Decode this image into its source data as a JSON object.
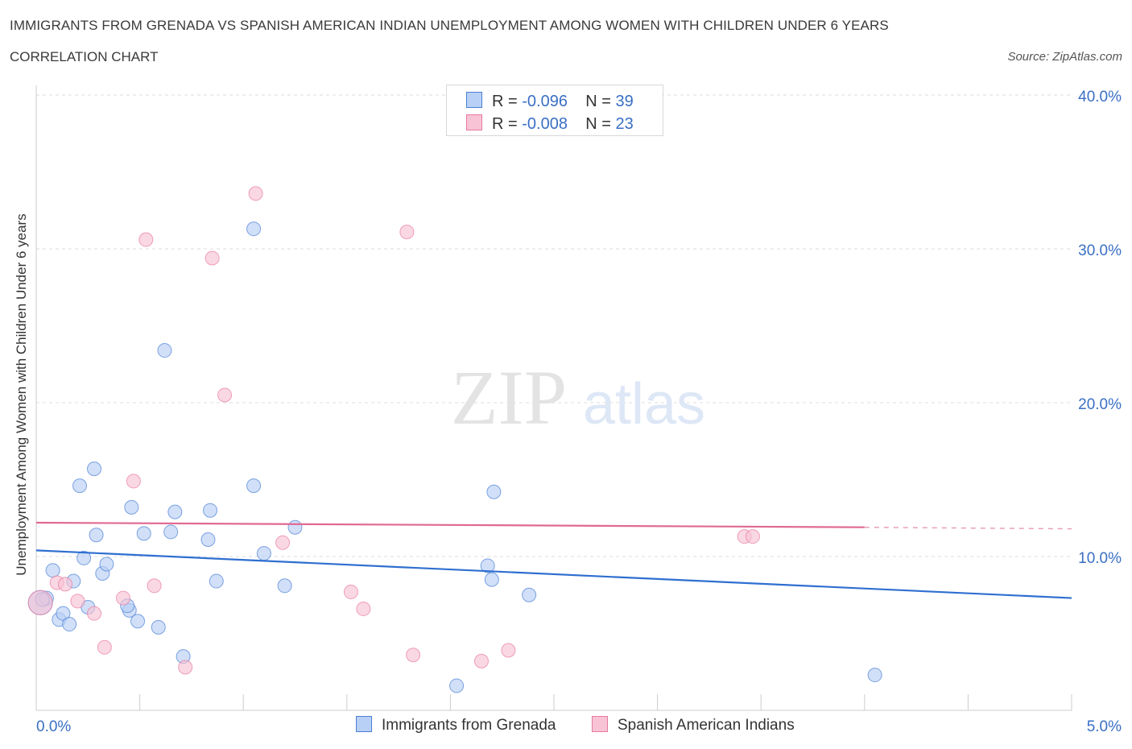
{
  "title": "IMMIGRANTS FROM GRENADA VS SPANISH AMERICAN INDIAN UNEMPLOYMENT AMONG WOMEN WITH CHILDREN UNDER 6 YEARS",
  "subtitle": "CORRELATION CHART",
  "source": "Source: ZipAtlas.com",
  "watermark": {
    "zip": "ZIP",
    "atlas": "atlas"
  },
  "legend": [
    {
      "r_label": "R =",
      "r_value": "-0.096",
      "n_label": "N =",
      "n_value": "39"
    },
    {
      "r_label": "R =",
      "r_value": "-0.008",
      "n_label": "N =",
      "n_value": "23"
    }
  ],
  "chart_data": {
    "type": "scatter",
    "title": "IMMIGRANTS FROM GRENADA VS SPANISH AMERICAN INDIAN UNEMPLOYMENT AMONG WOMEN WITH CHILDREN UNDER 6 YEARS",
    "xlabel": "",
    "ylabel": "Unemployment Among Women with Children Under 6 years",
    "xlim": [
      0,
      5
    ],
    "ylim": [
      0,
      40
    ],
    "x_tick_labels": [
      "0.0%",
      "5.0%"
    ],
    "y_ticks": [
      10,
      20,
      30,
      40
    ],
    "y_tick_labels": [
      "10.0%",
      "20.0%",
      "30.0%",
      "40.0%"
    ],
    "grid": true,
    "colors": {
      "blue": "#4a7fd6",
      "pink": "#e87aa0",
      "blue_fill": "#b8d0f5",
      "pink_fill": "#f8c3d4",
      "axis_text": "#3a6fc4"
    },
    "series": [
      {
        "name": "Immigrants from Grenada",
        "trend": {
          "x": [
            0,
            5
          ],
          "y": [
            10.4,
            7.3
          ]
        },
        "points": [
          {
            "x": 0.02,
            "y": 7.0,
            "big": true
          },
          {
            "x": 0.05,
            "y": 7.3
          },
          {
            "x": 0.08,
            "y": 9.1
          },
          {
            "x": 0.11,
            "y": 5.9
          },
          {
            "x": 0.13,
            "y": 6.3
          },
          {
            "x": 0.16,
            "y": 5.6
          },
          {
            "x": 0.18,
            "y": 8.4
          },
          {
            "x": 0.21,
            "y": 14.6
          },
          {
            "x": 0.23,
            "y": 9.9
          },
          {
            "x": 0.25,
            "y": 6.7
          },
          {
            "x": 0.28,
            "y": 15.7
          },
          {
            "x": 0.29,
            "y": 11.4
          },
          {
            "x": 0.32,
            "y": 8.9
          },
          {
            "x": 0.34,
            "y": 9.5
          },
          {
            "x": 0.45,
            "y": 6.5
          },
          {
            "x": 0.44,
            "y": 6.8
          },
          {
            "x": 0.46,
            "y": 13.2
          },
          {
            "x": 0.49,
            "y": 5.8
          },
          {
            "x": 0.52,
            "y": 11.5
          },
          {
            "x": 0.59,
            "y": 5.4
          },
          {
            "x": 0.62,
            "y": 23.4
          },
          {
            "x": 0.65,
            "y": 11.6
          },
          {
            "x": 0.67,
            "y": 12.9
          },
          {
            "x": 0.71,
            "y": 3.5
          },
          {
            "x": 0.83,
            "y": 11.1
          },
          {
            "x": 0.84,
            "y": 13.0
          },
          {
            "x": 0.87,
            "y": 8.4
          },
          {
            "x": 1.05,
            "y": 14.6
          },
          {
            "x": 1.05,
            "y": 31.3
          },
          {
            "x": 1.1,
            "y": 10.2
          },
          {
            "x": 1.2,
            "y": 8.1
          },
          {
            "x": 1.25,
            "y": 11.9
          },
          {
            "x": 2.03,
            "y": 1.6
          },
          {
            "x": 2.18,
            "y": 9.4
          },
          {
            "x": 2.2,
            "y": 8.5
          },
          {
            "x": 2.21,
            "y": 14.2
          },
          {
            "x": 2.38,
            "y": 7.5
          },
          {
            "x": 4.05,
            "y": 2.3
          },
          {
            "x": 0.03,
            "y": 7.2
          }
        ]
      },
      {
        "name": "Spanish American Indians",
        "trend": {
          "x": [
            0,
            4.0
          ],
          "y": [
            12.2,
            11.9
          ]
        },
        "trend_dashed": {
          "x": [
            4.0,
            5
          ],
          "y": [
            11.9,
            11.8
          ]
        },
        "points": [
          {
            "x": 0.02,
            "y": 7.0,
            "big": true
          },
          {
            "x": 0.1,
            "y": 8.3
          },
          {
            "x": 0.14,
            "y": 8.2
          },
          {
            "x": 0.2,
            "y": 7.1
          },
          {
            "x": 0.28,
            "y": 6.3
          },
          {
            "x": 0.33,
            "y": 4.1
          },
          {
            "x": 0.42,
            "y": 7.3
          },
          {
            "x": 0.47,
            "y": 14.9
          },
          {
            "x": 0.53,
            "y": 30.6
          },
          {
            "x": 0.57,
            "y": 8.1
          },
          {
            "x": 0.72,
            "y": 2.8
          },
          {
            "x": 0.85,
            "y": 29.4
          },
          {
            "x": 0.91,
            "y": 20.5
          },
          {
            "x": 1.06,
            "y": 33.6
          },
          {
            "x": 1.19,
            "y": 10.9
          },
          {
            "x": 1.52,
            "y": 7.7
          },
          {
            "x": 1.58,
            "y": 6.6
          },
          {
            "x": 1.79,
            "y": 31.1
          },
          {
            "x": 1.82,
            "y": 3.6
          },
          {
            "x": 2.15,
            "y": 3.2
          },
          {
            "x": 2.28,
            "y": 3.9
          },
          {
            "x": 3.42,
            "y": 11.3
          },
          {
            "x": 3.46,
            "y": 11.3
          }
        ]
      }
    ]
  }
}
